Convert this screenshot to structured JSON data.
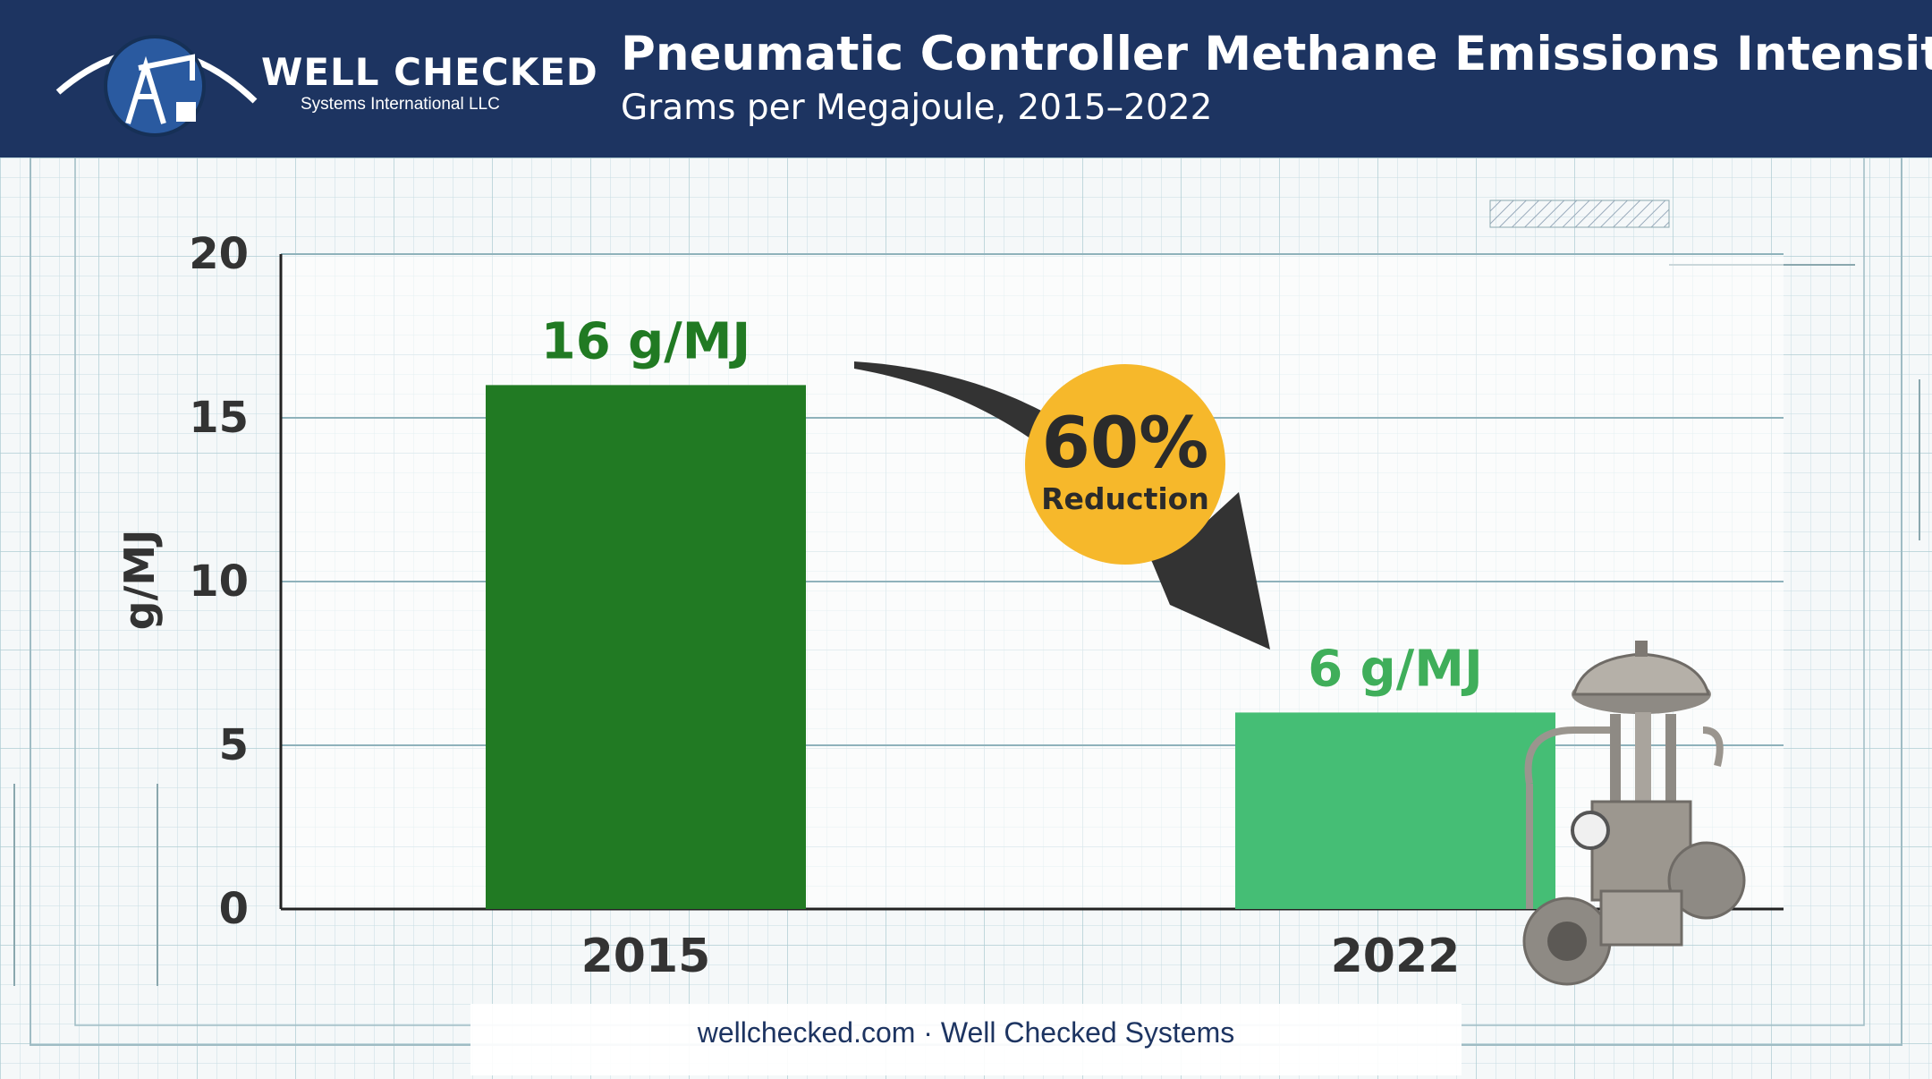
{
  "header": {
    "logo_name": "WELL CHECKED",
    "logo_sub": "Systems International LLC",
    "title": "Pneumatic Controller Methane Emissions Intensity",
    "subtitle": "Grams per Megajoule, 2015–2022"
  },
  "colors": {
    "header_bg": "#1d3461",
    "bar_2015": "#217a23",
    "bar_2022": "#45be75",
    "label_2015": "#217a23",
    "label_2022": "#3fae5a",
    "badge": "#f6b82b",
    "arrow": "#333333"
  },
  "badge": {
    "value": "60%",
    "label": "Reduction"
  },
  "footer": "wellchecked.com · Well Checked Systems",
  "chart_data": {
    "type": "bar",
    "title": "Pneumatic Controller Methane Emissions Intensity",
    "subtitle": "Grams per Megajoule, 2015–2022",
    "categories": [
      "2015",
      "2022"
    ],
    "values": [
      16,
      6
    ],
    "data_labels": [
      "16 g/MJ",
      "6 g/MJ"
    ],
    "ylabel": "g/MJ",
    "xlabel": "",
    "ylim": [
      0,
      20
    ],
    "yticks": [
      0,
      5,
      10,
      15,
      20
    ],
    "grid": true,
    "annotation": "60% Reduction"
  }
}
